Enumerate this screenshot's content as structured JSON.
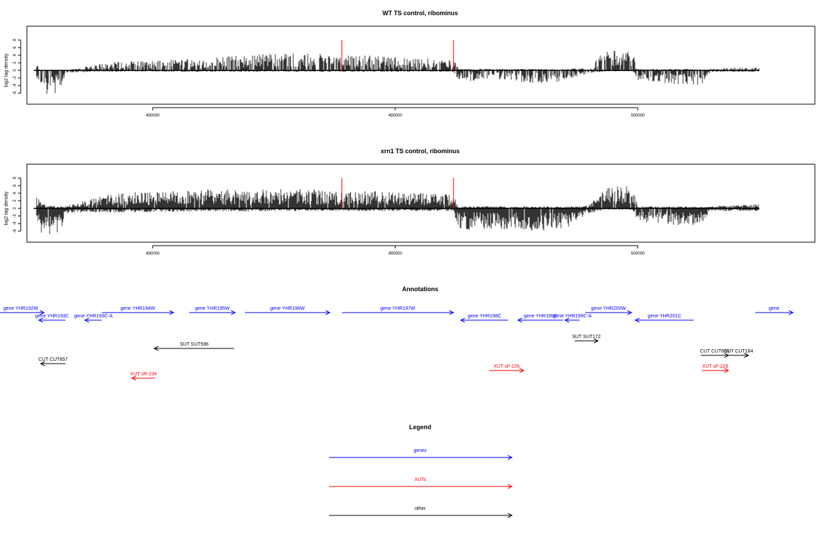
{
  "colors": {
    "gene": "#0000ff",
    "xut": "#ff0000",
    "other": "#000000",
    "marker": "#ff0000",
    "bars": "#000000"
  },
  "chart_data": [
    {
      "type": "bar",
      "title": "WT TS control, ribominus",
      "ylabel": "log2 tag density",
      "xlim": [
        487500,
        502500
      ],
      "ylim": [
        -6,
        8
      ],
      "x_ticks": [
        490000,
        495000,
        500000
      ],
      "x_tick_labels": [
        "490000",
        "495000",
        "500000"
      ],
      "y_ticks": [
        8,
        6,
        4,
        2,
        0,
        -2,
        -4,
        -6
      ],
      "y_tick_labels": [
        "8",
        "6",
        "4",
        "2",
        "0",
        "-2",
        "-4",
        "-6"
      ],
      "red_markers_x": [
        493900,
        496200
      ],
      "red_marker_height": 8,
      "profile_x": [
        487600,
        487700,
        487900,
        488100,
        488200,
        488800,
        489000,
        489500,
        490000,
        490500,
        491000,
        491500,
        492000,
        492500,
        493000,
        493500,
        493900,
        494000,
        494500,
        495000,
        495500,
        496000,
        496200,
        496300,
        496500,
        497000,
        497500,
        498000,
        498500,
        499000,
        499300,
        499600,
        499900,
        500000,
        500300,
        500500,
        501000,
        501300,
        501500,
        502000,
        502500
      ],
      "profile_pos": [
        1.5,
        0,
        0,
        0,
        0,
        1,
        1.5,
        1.8,
        2.0,
        2.2,
        2.3,
        2.8,
        3.0,
        3.4,
        3.5,
        3.2,
        2.8,
        3.0,
        3.0,
        2.6,
        2.4,
        2.2,
        2.2,
        0.3,
        0.3,
        0.3,
        0.3,
        0.3,
        0.3,
        0.5,
        3.8,
        4.0,
        3.5,
        0.3,
        0.3,
        0.3,
        0.3,
        0.2,
        0.3,
        0.5,
        0.6
      ],
      "profile_neg": [
        -1,
        -4.5,
        -4.8,
        -4.5,
        -0.5,
        -0.3,
        -0.3,
        -0.3,
        -0.2,
        -0.3,
        -0.3,
        -0.3,
        -0.3,
        -0.3,
        -0.3,
        -0.3,
        -0.3,
        -0.3,
        -0.3,
        -0.3,
        -0.3,
        -0.3,
        -0.3,
        -2.0,
        -2.2,
        -1.5,
        -2.2,
        -2.5,
        -2.2,
        -0.5,
        -0.2,
        -0.2,
        -0.2,
        -2.0,
        -2.2,
        -2.5,
        -3.0,
        -3.0,
        -0.3,
        -0.3,
        -0.3
      ],
      "profile_density": 0.75
    },
    {
      "type": "bar",
      "title": "xrn1 TS control, ribominus",
      "ylabel": "log2 tag density",
      "xlim": [
        487500,
        502500
      ],
      "ylim": [
        -6,
        8
      ],
      "x_ticks": [
        490000,
        495000,
        500000
      ],
      "x_tick_labels": [
        "490000",
        "495000",
        "500000"
      ],
      "y_ticks": [
        8,
        6,
        4,
        2,
        0,
        -2,
        -4,
        -6
      ],
      "y_tick_labels": [
        "8",
        "6",
        "4",
        "2",
        "0",
        "-2",
        "-4",
        "-6"
      ],
      "red_markers_x": [
        493900,
        496200
      ],
      "red_marker_height": 8,
      "profile_x": [
        487600,
        487700,
        487900,
        488100,
        488200,
        488800,
        489000,
        489500,
        490000,
        490500,
        491000,
        491500,
        492000,
        492500,
        493000,
        493500,
        493900,
        494000,
        494500,
        495000,
        495500,
        496000,
        496200,
        496300,
        496500,
        497000,
        497500,
        498000,
        498500,
        499000,
        499300,
        499600,
        499900,
        500000,
        500300,
        500500,
        501000,
        501300,
        501500,
        502000,
        502500
      ],
      "profile_pos": [
        2.5,
        1.0,
        0.5,
        0.5,
        0.5,
        2.0,
        2.8,
        3.2,
        3.5,
        3.6,
        3.6,
        3.8,
        3.8,
        3.9,
        4.0,
        3.6,
        3.2,
        3.3,
        3.4,
        3.2,
        3.0,
        2.8,
        2.8,
        0.4,
        0.4,
        0.4,
        0.4,
        0.4,
        0.4,
        0.6,
        4.5,
        4.8,
        4.2,
        0.4,
        0.4,
        0.4,
        0.4,
        0.3,
        0.4,
        0.6,
        0.8
      ],
      "profile_neg": [
        -1.5,
        -4.8,
        -5.2,
        -4.8,
        -1.0,
        -0.8,
        -0.8,
        -0.8,
        -0.7,
        -0.7,
        -0.6,
        -0.6,
        -0.6,
        -0.5,
        -0.5,
        -0.5,
        -0.5,
        -0.5,
        -0.5,
        -0.5,
        -0.5,
        -0.5,
        -0.5,
        -4.0,
        -4.2,
        -4.0,
        -4.2,
        -4.5,
        -4.0,
        -1.0,
        -0.3,
        -0.3,
        -0.3,
        -3.0,
        -3.2,
        -3.2,
        -3.5,
        -3.2,
        -0.5,
        -0.5,
        -0.5
      ],
      "profile_density": 0.95
    }
  ],
  "annotations": {
    "title": "Annotations",
    "xlim": [
      487500,
      502500
    ],
    "items": [
      {
        "label": "gene YHR192W",
        "type": "gene",
        "start": 486800,
        "end": 487760,
        "dir": "+",
        "row": 0
      },
      {
        "label": "gene YHR193C",
        "type": "gene",
        "start": 487650,
        "end": 488200,
        "dir": "-",
        "row": 1
      },
      {
        "label": "gene YHR193C-A",
        "type": "gene",
        "start": 488600,
        "end": 488950,
        "dir": "-",
        "row": 1
      },
      {
        "label": "gene YHR194W",
        "type": "gene",
        "start": 488950,
        "end": 490430,
        "dir": "+",
        "row": 0
      },
      {
        "label": "gene YHR195W",
        "type": "gene",
        "start": 490750,
        "end": 491700,
        "dir": "+",
        "row": 0
      },
      {
        "label": "gene YHR196W",
        "type": "gene",
        "start": 491900,
        "end": 493650,
        "dir": "+",
        "row": 0
      },
      {
        "label": "gene YHR197W",
        "type": "gene",
        "start": 493900,
        "end": 496200,
        "dir": "+",
        "row": 0
      },
      {
        "label": "gene YHR198C",
        "type": "gene",
        "start": 496350,
        "end": 497330,
        "dir": "-",
        "row": 1
      },
      {
        "label": "gene YHR199C",
        "type": "gene",
        "start": 497530,
        "end": 498460,
        "dir": "-",
        "row": 1
      },
      {
        "label": "gene YHR199C-A",
        "type": "gene",
        "start": 498500,
        "end": 498800,
        "dir": "-",
        "row": 1
      },
      {
        "label": "gene YHR200W",
        "type": "gene",
        "start": 498920,
        "end": 499870,
        "dir": "+",
        "row": 0
      },
      {
        "label": "gene YHR201C",
        "type": "gene",
        "start": 499950,
        "end": 501150,
        "dir": "-",
        "row": 1
      },
      {
        "label": "gene",
        "type": "gene",
        "start": 502420,
        "end": 503200,
        "dir": "+",
        "row": 0
      },
      {
        "label": "SUT SUT596",
        "type": "other",
        "start": 490030,
        "end": 491680,
        "dir": "-",
        "row": 4
      },
      {
        "label": "SUT SUT172",
        "type": "other",
        "start": 498700,
        "end": 499180,
        "dir": "+",
        "row": 3
      },
      {
        "label": "CUT CUT657",
        "type": "other",
        "start": 487690,
        "end": 488200,
        "dir": "-",
        "row": 6
      },
      {
        "label": "CUT CUT660",
        "type": "other",
        "start": 501300,
        "end": 501870,
        "dir": "+",
        "row": 5
      },
      {
        "label": "CUT CUT184",
        "type": "other",
        "start": 501870,
        "end": 502280,
        "dir": "+",
        "row": 5
      },
      {
        "label": "XUT sR-234",
        "type": "xut",
        "start": 489570,
        "end": 490050,
        "dir": "-",
        "row": 8
      },
      {
        "label": "XUT sF-226",
        "type": "xut",
        "start": 496940,
        "end": 497650,
        "dir": "+",
        "row": 7
      },
      {
        "label": "XUT sF-229",
        "type": "xut",
        "start": 501320,
        "end": 501870,
        "dir": "+",
        "row": 7
      }
    ]
  },
  "legend": {
    "title": "Legend",
    "items": [
      {
        "label": "genes",
        "type": "gene"
      },
      {
        "label": "XUTs",
        "type": "xut"
      },
      {
        "label": "other",
        "type": "other"
      }
    ]
  }
}
